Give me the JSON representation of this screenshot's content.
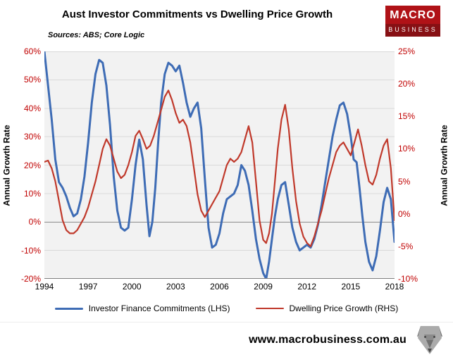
{
  "header": {
    "title": "Aust Investor Commitments vs Dwelling Price Growth",
    "sources": "Sources: ABS; Core Logic",
    "logo": {
      "top": "MACRO",
      "bottom": "BUSINESS",
      "top_color": "#b01217",
      "bottom_color": "#871014"
    }
  },
  "footer": {
    "url": "www.macrobusiness.com.au"
  },
  "chart_data": {
    "type": "line",
    "title": "Aust Investor Commitments vs Dwelling Price Growth",
    "sources": "Sources: ABS; Core Logic",
    "grid": true,
    "legend_position": "bottom",
    "plot_background": "#f2f2f2",
    "gridline_color": "#d9d9d9",
    "zeroline_color": "#8c8c8c",
    "x_range": [
      1994,
      2018
    ],
    "x_ticks": [
      1994,
      1997,
      2000,
      2003,
      2006,
      2009,
      2012,
      2015,
      2018
    ],
    "left_axis": {
      "label": "Annual Growth Rate",
      "min": -20,
      "max": 60,
      "ticks": [
        60,
        50,
        40,
        30,
        20,
        10,
        0,
        -10,
        -20
      ],
      "tick_suffix": "%",
      "tick_color": "#c00000"
    },
    "right_axis": {
      "label": "Annual Growth Rate",
      "min": -10,
      "max": 25,
      "ticks": [
        25,
        20,
        15,
        10,
        5,
        0,
        -5,
        -10
      ],
      "tick_suffix": "%",
      "tick_color": "#c00000"
    },
    "series": [
      {
        "name": "Investor Finance Commitments (LHS)",
        "axis": "left",
        "color": "#3e6cb5",
        "width": 3,
        "points": [
          [
            1994.0,
            60
          ],
          [
            1994.25,
            48
          ],
          [
            1994.5,
            36
          ],
          [
            1994.75,
            22
          ],
          [
            1995.0,
            14
          ],
          [
            1995.25,
            12
          ],
          [
            1995.5,
            9
          ],
          [
            1995.75,
            5
          ],
          [
            1996.0,
            2
          ],
          [
            1996.25,
            3
          ],
          [
            1996.5,
            8
          ],
          [
            1996.75,
            16
          ],
          [
            1997.0,
            28
          ],
          [
            1997.25,
            42
          ],
          [
            1997.5,
            52
          ],
          [
            1997.75,
            57
          ],
          [
            1998.0,
            56
          ],
          [
            1998.25,
            48
          ],
          [
            1998.5,
            34
          ],
          [
            1998.75,
            16
          ],
          [
            1999.0,
            4
          ],
          [
            1999.25,
            -2
          ],
          [
            1999.5,
            -3
          ],
          [
            1999.75,
            -2
          ],
          [
            2000.0,
            8
          ],
          [
            2000.25,
            20
          ],
          [
            2000.5,
            29
          ],
          [
            2000.75,
            22
          ],
          [
            2001.0,
            6
          ],
          [
            2001.2,
            -5
          ],
          [
            2001.4,
            0
          ],
          [
            2001.6,
            12
          ],
          [
            2001.8,
            28
          ],
          [
            2002.0,
            42
          ],
          [
            2002.25,
            52
          ],
          [
            2002.5,
            56
          ],
          [
            2002.75,
            55
          ],
          [
            2003.0,
            53
          ],
          [
            2003.25,
            55
          ],
          [
            2003.5,
            49
          ],
          [
            2003.75,
            42
          ],
          [
            2004.0,
            37
          ],
          [
            2004.25,
            40
          ],
          [
            2004.5,
            42
          ],
          [
            2004.75,
            33
          ],
          [
            2005.0,
            15
          ],
          [
            2005.25,
            -2
          ],
          [
            2005.5,
            -9
          ],
          [
            2005.75,
            -8
          ],
          [
            2006.0,
            -4
          ],
          [
            2006.25,
            3
          ],
          [
            2006.5,
            8
          ],
          [
            2006.75,
            9
          ],
          [
            2007.0,
            10
          ],
          [
            2007.25,
            13
          ],
          [
            2007.5,
            20
          ],
          [
            2007.75,
            18
          ],
          [
            2008.0,
            13
          ],
          [
            2008.25,
            4
          ],
          [
            2008.5,
            -6
          ],
          [
            2008.75,
            -13
          ],
          [
            2009.0,
            -18
          ],
          [
            2009.2,
            -20
          ],
          [
            2009.4,
            -14
          ],
          [
            2009.6,
            -6
          ],
          [
            2009.8,
            2
          ],
          [
            2010.0,
            8
          ],
          [
            2010.25,
            13
          ],
          [
            2010.5,
            14
          ],
          [
            2010.75,
            6
          ],
          [
            2011.0,
            -2
          ],
          [
            2011.25,
            -7
          ],
          [
            2011.5,
            -10
          ],
          [
            2011.75,
            -9
          ],
          [
            2012.0,
            -8
          ],
          [
            2012.25,
            -9
          ],
          [
            2012.5,
            -6
          ],
          [
            2012.75,
            -1
          ],
          [
            2013.0,
            6
          ],
          [
            2013.25,
            14
          ],
          [
            2013.5,
            22
          ],
          [
            2013.75,
            30
          ],
          [
            2014.0,
            36
          ],
          [
            2014.25,
            41
          ],
          [
            2014.5,
            42
          ],
          [
            2014.75,
            38
          ],
          [
            2015.0,
            30
          ],
          [
            2015.2,
            22
          ],
          [
            2015.4,
            21
          ],
          [
            2015.6,
            12
          ],
          [
            2015.8,
            2
          ],
          [
            2016.0,
            -7
          ],
          [
            2016.25,
            -14
          ],
          [
            2016.5,
            -17
          ],
          [
            2016.75,
            -12
          ],
          [
            2017.0,
            -3
          ],
          [
            2017.25,
            7
          ],
          [
            2017.5,
            12
          ],
          [
            2017.75,
            8
          ],
          [
            2018.0,
            -7
          ]
        ]
      },
      {
        "name": "Dwelling Price Growth (RHS)",
        "axis": "right",
        "color": "#c0392b",
        "width": 2.2,
        "points": [
          [
            1994.0,
            8
          ],
          [
            1994.25,
            8.2
          ],
          [
            1994.5,
            7
          ],
          [
            1994.75,
            5
          ],
          [
            1995.0,
            2
          ],
          [
            1995.25,
            -1
          ],
          [
            1995.5,
            -2.5
          ],
          [
            1995.75,
            -3
          ],
          [
            1996.0,
            -3
          ],
          [
            1996.25,
            -2.5
          ],
          [
            1996.5,
            -1.5
          ],
          [
            1996.75,
            -0.5
          ],
          [
            1997.0,
            1
          ],
          [
            1997.25,
            3
          ],
          [
            1997.5,
            5
          ],
          [
            1997.75,
            7.5
          ],
          [
            1998.0,
            10
          ],
          [
            1998.25,
            11.5
          ],
          [
            1998.5,
            10.5
          ],
          [
            1998.75,
            8.5
          ],
          [
            1999.0,
            6.5
          ],
          [
            1999.25,
            5.5
          ],
          [
            1999.5,
            6
          ],
          [
            1999.75,
            7.5
          ],
          [
            2000.0,
            9.5
          ],
          [
            2000.25,
            12
          ],
          [
            2000.5,
            12.8
          ],
          [
            2000.75,
            11.5
          ],
          [
            2001.0,
            10
          ],
          [
            2001.25,
            10.5
          ],
          [
            2001.5,
            12
          ],
          [
            2001.75,
            14
          ],
          [
            2002.0,
            16
          ],
          [
            2002.25,
            18
          ],
          [
            2002.5,
            19
          ],
          [
            2002.75,
            17.5
          ],
          [
            2003.0,
            15.5
          ],
          [
            2003.25,
            14
          ],
          [
            2003.5,
            14.5
          ],
          [
            2003.75,
            13.5
          ],
          [
            2004.0,
            11
          ],
          [
            2004.25,
            7
          ],
          [
            2004.5,
            3
          ],
          [
            2004.75,
            0.5
          ],
          [
            2005.0,
            -0.5
          ],
          [
            2005.25,
            0.5
          ],
          [
            2005.5,
            1.5
          ],
          [
            2005.75,
            2.5
          ],
          [
            2006.0,
            3.5
          ],
          [
            2006.25,
            5.5
          ],
          [
            2006.5,
            7.5
          ],
          [
            2006.75,
            8.5
          ],
          [
            2007.0,
            8
          ],
          [
            2007.25,
            8.5
          ],
          [
            2007.5,
            9.5
          ],
          [
            2007.75,
            11.5
          ],
          [
            2008.0,
            13.5
          ],
          [
            2008.25,
            11
          ],
          [
            2008.5,
            5
          ],
          [
            2008.75,
            -1
          ],
          [
            2009.0,
            -4
          ],
          [
            2009.2,
            -4.5
          ],
          [
            2009.4,
            -3
          ],
          [
            2009.6,
            0
          ],
          [
            2009.8,
            5
          ],
          [
            2010.0,
            10
          ],
          [
            2010.25,
            14.5
          ],
          [
            2010.5,
            16.8
          ],
          [
            2010.75,
            13
          ],
          [
            2011.0,
            7
          ],
          [
            2011.25,
            2
          ],
          [
            2011.5,
            -1.5
          ],
          [
            2011.75,
            -3.5
          ],
          [
            2012.0,
            -4.5
          ],
          [
            2012.25,
            -5
          ],
          [
            2012.5,
            -3.5
          ],
          [
            2012.75,
            -1.5
          ],
          [
            2013.0,
            0.5
          ],
          [
            2013.25,
            3
          ],
          [
            2013.5,
            5.5
          ],
          [
            2013.75,
            7.5
          ],
          [
            2014.0,
            9.5
          ],
          [
            2014.25,
            10.5
          ],
          [
            2014.5,
            11
          ],
          [
            2014.75,
            10
          ],
          [
            2015.0,
            9
          ],
          [
            2015.25,
            11
          ],
          [
            2015.5,
            13
          ],
          [
            2015.75,
            10.5
          ],
          [
            2016.0,
            7.5
          ],
          [
            2016.25,
            5
          ],
          [
            2016.5,
            4.5
          ],
          [
            2016.75,
            6
          ],
          [
            2017.0,
            8.5
          ],
          [
            2017.25,
            10.5
          ],
          [
            2017.5,
            11.5
          ],
          [
            2017.75,
            7
          ],
          [
            2018.0,
            -1
          ]
        ]
      }
    ]
  }
}
